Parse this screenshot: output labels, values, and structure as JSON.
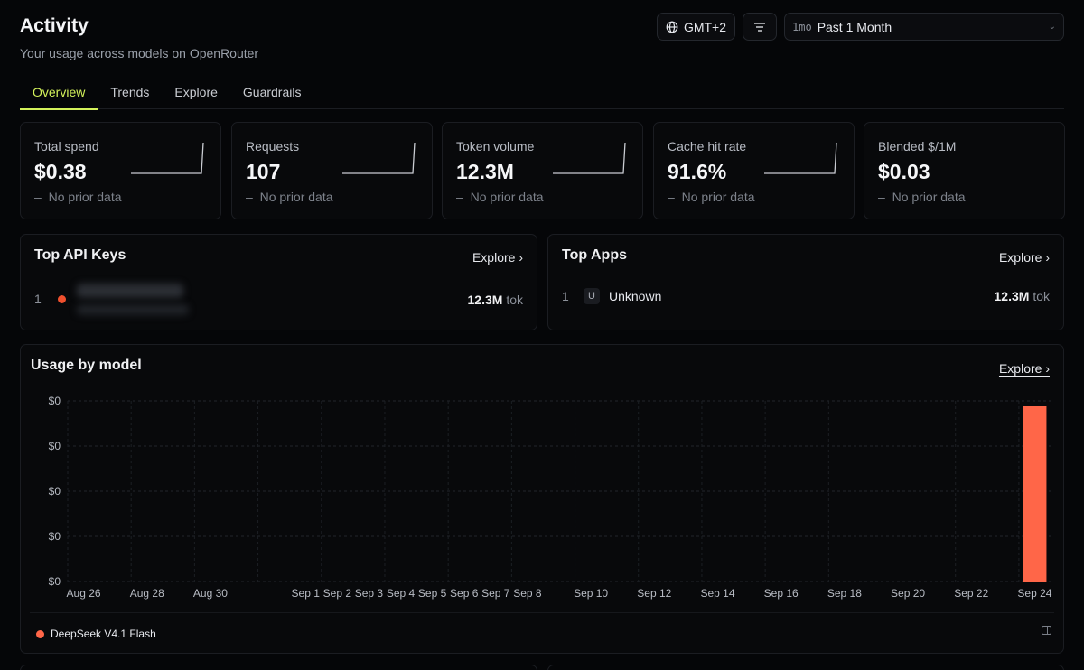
{
  "header": {
    "title": "Activity",
    "subtitle": "Your usage across models on OpenRouter"
  },
  "controls": {
    "timezone": "GMT+2",
    "filter_icon": "filter-icon",
    "range_badge": "1mo",
    "range_label": "Past 1 Month"
  },
  "tabs": [
    {
      "label": "Overview",
      "active": true
    },
    {
      "label": "Trends",
      "active": false
    },
    {
      "label": "Explore",
      "active": false
    },
    {
      "label": "Guardrails",
      "active": false
    }
  ],
  "stats": [
    {
      "label": "Total spend",
      "value": "$0.38",
      "delta": "No prior data"
    },
    {
      "label": "Requests",
      "value": "107",
      "delta": "No prior data"
    },
    {
      "label": "Token volume",
      "value": "12.3M",
      "delta": "No prior data"
    },
    {
      "label": "Cache hit rate",
      "value": "91.6%",
      "delta": "No prior data"
    },
    {
      "label": "Blended $/1M",
      "value": "$0.03",
      "delta": "No prior data"
    }
  ],
  "top_api_keys": {
    "title": "Top API Keys",
    "explore_label": "Explore ›",
    "rows": [
      {
        "rank": "1",
        "tokens": "12.3M",
        "unit": "tok",
        "color": "#f0502e"
      }
    ]
  },
  "top_apps": {
    "title": "Top Apps",
    "explore_label": "Explore ›",
    "rows": [
      {
        "rank": "1",
        "badge": "U",
        "name": "Unknown",
        "tokens": "12.3M",
        "unit": "tok"
      }
    ]
  },
  "usage_by_model": {
    "title": "Usage by model",
    "explore_label": "Explore ›",
    "legend": [
      {
        "label": "DeepSeek V4.1 Flash",
        "color": "#ff6648"
      }
    ]
  },
  "chart_data": {
    "type": "bar",
    "y_tick_labels": [
      "$0",
      "$0",
      "$0",
      "$0",
      "$0"
    ],
    "x_tick_labels": [
      "Aug 26",
      "Aug 28",
      "Aug 30",
      "Sep 1",
      "Sep 2",
      "Sep 3",
      "Sep 4",
      "Sep 5",
      "Sep 6",
      "Sep 7",
      "Sep 8",
      "Sep 10",
      "Sep 12",
      "Sep 14",
      "Sep 16",
      "Sep 18",
      "Sep 20",
      "Sep 22",
      "Sep 24"
    ],
    "grid": true,
    "legend": "bottom-left",
    "series": [
      {
        "name": "DeepSeek V4.1 Flash",
        "color": "#ff6648",
        "points": [
          {
            "x": "Sep 24",
            "value": 0.38
          }
        ]
      }
    ]
  }
}
